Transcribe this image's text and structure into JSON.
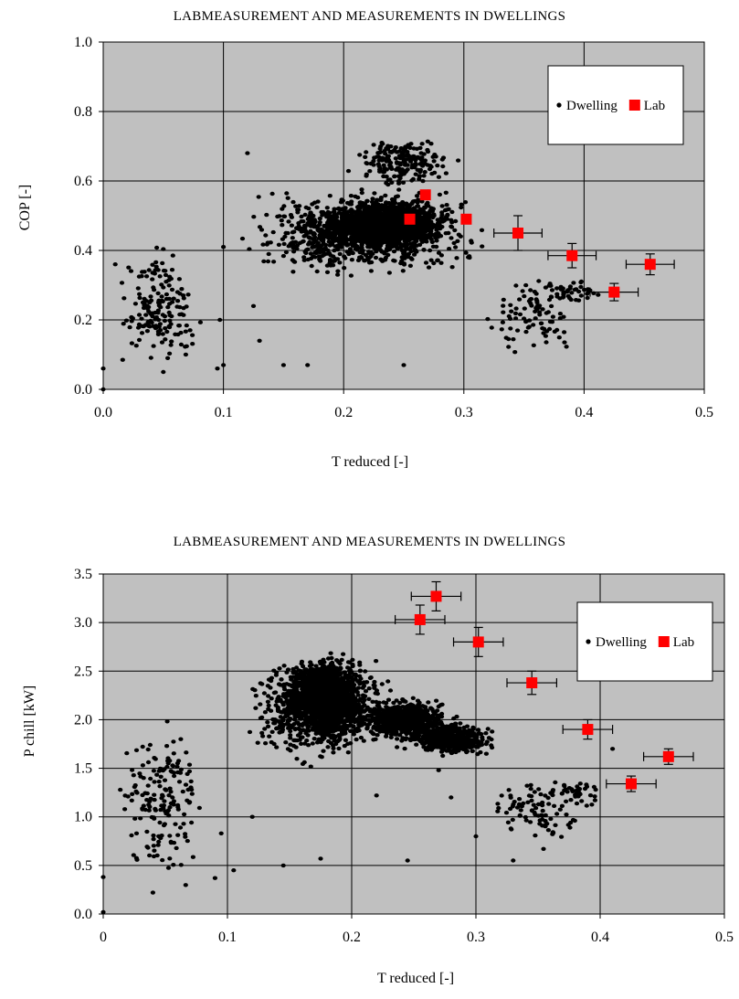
{
  "chart_data": [
    {
      "type": "scatter",
      "title": "LABMEASUREMENT  AND  MEASUREMENTS  IN DWELLINGS",
      "xlabel": "T reduced [-]",
      "ylabel": "COP [-]",
      "xlim": [
        0,
        0.5
      ],
      "ylim": [
        0,
        1
      ],
      "x_ticks": [
        "0.0",
        "0.1",
        "0.2",
        "0.3",
        "0.4",
        "0.5"
      ],
      "y_ticks": [
        "0.0",
        "0.2",
        "0.4",
        "0.6",
        "0.8",
        "1.0"
      ],
      "grid": true,
      "legend_position": "top-right",
      "plot_background": "#c0c0c0",
      "series": [
        {
          "name": "Dwelling",
          "color": "#000000",
          "marker": "circle",
          "clusters": [
            {
              "x_range": [
                0.1,
                0.33
              ],
              "y_range": [
                0.3,
                0.6
              ],
              "count": 900
            },
            {
              "x_range": [
                0.16,
                0.3
              ],
              "y_range": [
                0.4,
                0.52
              ],
              "count": 900
            },
            {
              "x_range": [
                0.18,
                0.3
              ],
              "y_range": [
                0.42,
                0.57
              ],
              "count": 600
            },
            {
              "x_range": [
                0.2,
                0.3
              ],
              "y_range": [
                0.55,
                0.75
              ],
              "count": 200
            },
            {
              "x_range": [
                0.005,
                0.09
              ],
              "y_range": [
                0.03,
                0.43
              ],
              "count": 170
            },
            {
              "x_range": [
                0.31,
                0.4
              ],
              "y_range": [
                0.06,
                0.36
              ],
              "count": 90
            },
            {
              "x_range": [
                0.35,
                0.43
              ],
              "y_range": [
                0.24,
                0.33
              ],
              "count": 40
            }
          ],
          "points": [
            [
              0.0,
              0.0
            ],
            [
              0.0,
              0.06
            ],
            [
              0.01,
              0.36
            ],
            [
              0.05,
              0.05
            ],
            [
              0.1,
              0.07
            ],
            [
              0.12,
              0.68
            ],
            [
              0.15,
              0.07
            ],
            [
              0.17,
              0.07
            ],
            [
              0.25,
              0.07
            ],
            [
              0.22,
              0.38
            ],
            [
              0.195,
              0.33
            ],
            [
              0.125,
              0.24
            ],
            [
              0.13,
              0.14
            ],
            [
              0.1,
              0.41
            ],
            [
              0.097,
              0.2
            ],
            [
              0.095,
              0.06
            ]
          ]
        },
        {
          "name": "Lab",
          "color": "#ff0000",
          "marker": "square",
          "x": [
            0.255,
            0.268,
            0.302,
            0.345,
            0.39,
            0.425,
            0.455
          ],
          "y": [
            0.49,
            0.56,
            0.49,
            0.45,
            0.385,
            0.28,
            0.36
          ],
          "x_err": [
            0,
            0,
            0,
            0.02,
            0.02,
            0.02,
            0.02
          ],
          "y_err": [
            0,
            0,
            0,
            0.05,
            0.035,
            0.025,
            0.03
          ]
        }
      ]
    },
    {
      "type": "scatter",
      "title": "LABMEASUREMENT  AND  MEASUREMENTS  IN DWELLINGS",
      "xlabel": "T reduced [-]",
      "ylabel": "P chill  [kW]",
      "xlim": [
        0,
        0.5
      ],
      "ylim": [
        0,
        3.5
      ],
      "x_ticks": [
        "0",
        "0.1",
        "0.2",
        "0.3",
        "0.4",
        "0.5"
      ],
      "y_ticks": [
        "0.0",
        "0.5",
        "1.0",
        "1.5",
        "2.0",
        "2.5",
        "3.0",
        "3.5"
      ],
      "grid": true,
      "legend_position": "top-right",
      "plot_background": "#c0c0c0",
      "series": [
        {
          "name": "Dwelling",
          "color": "#000000",
          "marker": "circle",
          "clusters": [
            {
              "x_range": [
                0.11,
                0.24
              ],
              "y_range": [
                1.5,
                2.75
              ],
              "count": 1000
            },
            {
              "x_range": [
                0.14,
                0.22
              ],
              "y_range": [
                1.8,
                2.7
              ],
              "count": 1100
            },
            {
              "x_range": [
                0.2,
                0.29
              ],
              "y_range": [
                1.75,
                2.25
              ],
              "count": 700
            },
            {
              "x_range": [
                0.24,
                0.32
              ],
              "y_range": [
                1.6,
                2.0
              ],
              "count": 500
            },
            {
              "x_range": [
                0.005,
                0.09
              ],
              "y_range": [
                0.2,
                2.2
              ],
              "count": 170
            },
            {
              "x_range": [
                0.3,
                0.4
              ],
              "y_range": [
                0.6,
                1.5
              ],
              "count": 90
            },
            {
              "x_range": [
                0.35,
                0.41
              ],
              "y_range": [
                1.1,
                1.4
              ],
              "count": 40
            }
          ],
          "points": [
            [
              0.0,
              0.02
            ],
            [
              0.0,
              0.38
            ],
            [
              0.04,
              0.22
            ],
            [
              0.09,
              0.37
            ],
            [
              0.145,
              0.5
            ],
            [
              0.175,
              0.57
            ],
            [
              0.245,
              0.55
            ],
            [
              0.27,
              1.48
            ],
            [
              0.28,
              1.2
            ],
            [
              0.3,
              0.8
            ],
            [
              0.33,
              0.55
            ],
            [
              0.41,
              1.7
            ],
            [
              0.105,
              0.45
            ],
            [
              0.095,
              0.83
            ],
            [
              0.22,
              1.22
            ],
            [
              0.12,
              1.0
            ]
          ]
        },
        {
          "name": "Lab",
          "color": "#ff0000",
          "marker": "square",
          "x": [
            0.255,
            0.268,
            0.302,
            0.345,
            0.39,
            0.425,
            0.455
          ],
          "y": [
            3.03,
            3.27,
            2.8,
            2.38,
            1.9,
            1.34,
            1.62
          ],
          "x_err": [
            0.02,
            0.02,
            0.02,
            0.02,
            0.02,
            0.02,
            0.02
          ],
          "y_err": [
            0.15,
            0.15,
            0.15,
            0.12,
            0.1,
            0.08,
            0.08
          ]
        }
      ]
    }
  ]
}
